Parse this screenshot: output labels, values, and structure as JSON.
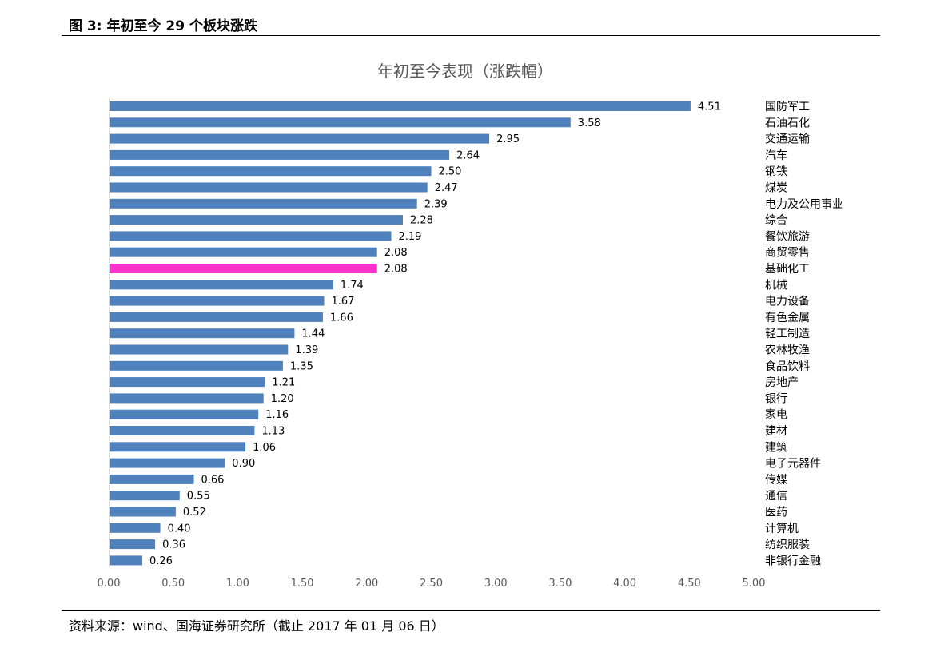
{
  "figure": {
    "title": "图 3:  年初至今 29 个板块涨跌",
    "source": "资料来源：wind、国海证券研究所（截止 2017 年 01 月 06 日）"
  },
  "chart_data": {
    "type": "bar",
    "orientation": "horizontal",
    "title": "年初至今表现（涨跌幅）",
    "xlabel": "",
    "ylabel": "",
    "xlim": [
      0,
      5
    ],
    "x_ticks": [
      "0.00",
      "0.50",
      "1.00",
      "1.50",
      "2.00",
      "2.50",
      "3.00",
      "3.50",
      "4.00",
      "4.50",
      "5.00"
    ],
    "grid": false,
    "category_label_position": "right",
    "bar_color": "#4f81bd",
    "highlight_color": "#ff33cc",
    "highlight_category": "基础化工",
    "categories": [
      "国防军工",
      "石油石化",
      "交通运输",
      "汽车",
      "钢铁",
      "煤炭",
      "电力及公用事业",
      "综合",
      "餐饮旅游",
      "商贸零售",
      "基础化工",
      "机械",
      "电力设备",
      "有色金属",
      "轻工制造",
      "农林牧渔",
      "食品饮料",
      "房地产",
      "银行",
      "家电",
      "建材",
      "建筑",
      "电子元器件",
      "传媒",
      "通信",
      "医药",
      "计算机",
      "纺织服装",
      "非银行金融"
    ],
    "values": [
      4.51,
      3.58,
      2.95,
      2.64,
      2.5,
      2.47,
      2.39,
      2.28,
      2.19,
      2.08,
      2.08,
      1.74,
      1.67,
      1.66,
      1.44,
      1.39,
      1.35,
      1.21,
      1.2,
      1.16,
      1.13,
      1.06,
      0.9,
      0.66,
      0.55,
      0.52,
      0.4,
      0.36,
      0.26
    ],
    "value_labels": [
      "4.51",
      "3.58",
      "2.95",
      "2.64",
      "2.50",
      "2.47",
      "2.39",
      "2.28",
      "2.19",
      "2.08",
      "2.08",
      "1.74",
      "1.67",
      "1.66",
      "1.44",
      "1.39",
      "1.35",
      "1.21",
      "1.20",
      "1.16",
      "1.13",
      "1.06",
      "0.90",
      "0.66",
      "0.55",
      "0.52",
      "0.40",
      "0.36",
      "0.26"
    ]
  }
}
